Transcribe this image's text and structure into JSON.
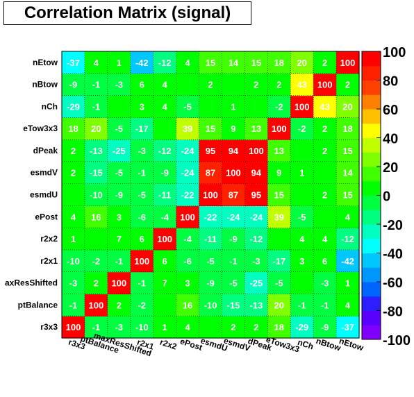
{
  "chart_data": {
    "type": "heatmap",
    "title": "Correlation Matrix (signal)",
    "x_labels": [
      "r3x3",
      "ptBalance",
      "maxResShifted",
      "r2x1",
      "r2x2",
      "ePost",
      "esmdU",
      "esmdV",
      "dPeak",
      "eTow3x3",
      "nCh",
      "nBtow",
      "nEtow"
    ],
    "y_labels": [
      "r3x3",
      "ptBalance",
      "maxResShifted",
      "r2x1",
      "r2x2",
      "ePost",
      "esmdU",
      "esmdV",
      "dPeak",
      "eTow3x3",
      "nCh",
      "nBtow",
      "nEtow"
    ],
    "y_labels_shown": [
      "r3x3",
      "ptBalance",
      "axResShifted",
      "r2x1",
      "r2x2",
      "ePost",
      "esmdU",
      "esmdV",
      "dPeak",
      "eTow3x3",
      "nCh",
      "nBtow",
      "nEtow"
    ],
    "values": [
      [
        100,
        -1,
        -3,
        -10,
        1,
        4,
        null,
        2,
        2,
        18,
        -29,
        -9,
        -37
      ],
      [
        -1,
        100,
        2,
        -2,
        null,
        16,
        -10,
        -15,
        -13,
        20,
        -1,
        -1,
        4
      ],
      [
        -3,
        2,
        100,
        -1,
        7,
        3,
        -9,
        -5,
        -25,
        -5,
        null,
        -3,
        1
      ],
      [
        -10,
        -2,
        -1,
        100,
        6,
        -6,
        -5,
        -1,
        -3,
        -17,
        3,
        6,
        -42
      ],
      [
        1,
        null,
        7,
        6,
        100,
        -4,
        -11,
        -9,
        -12,
        null,
        4,
        4,
        -12
      ],
      [
        4,
        16,
        3,
        -6,
        -4,
        100,
        -22,
        -24,
        -24,
        39,
        -5,
        null,
        4
      ],
      [
        null,
        -10,
        -9,
        -5,
        -11,
        -22,
        100,
        87,
        95,
        15,
        null,
        2,
        15
      ],
      [
        2,
        -15,
        -5,
        -1,
        -9,
        -24,
        87,
        100,
        94,
        9,
        1,
        null,
        14
      ],
      [
        2,
        -13,
        -25,
        -3,
        -12,
        -24,
        95,
        94,
        100,
        13,
        null,
        2,
        15
      ],
      [
        18,
        20,
        -5,
        -17,
        null,
        39,
        15,
        9,
        13,
        100,
        -2,
        2,
        18
      ],
      [
        -29,
        -1,
        null,
        3,
        4,
        -5,
        null,
        1,
        null,
        -2,
        100,
        43,
        20
      ],
      [
        -9,
        -1,
        -3,
        6,
        4,
        null,
        2,
        null,
        2,
        2,
        43,
        100,
        2
      ],
      [
        -37,
        4,
        1,
        -42,
        -12,
        4,
        15,
        14,
        15,
        18,
        20,
        2,
        100
      ]
    ],
    "zlim": [
      -100,
      100
    ],
    "colorbar_ticks": [
      "100",
      "80",
      "60",
      "40",
      "20",
      "0",
      "-20",
      "-40",
      "-60",
      "-80",
      "-100"
    ],
    "grid": true,
    "legend": "right"
  }
}
